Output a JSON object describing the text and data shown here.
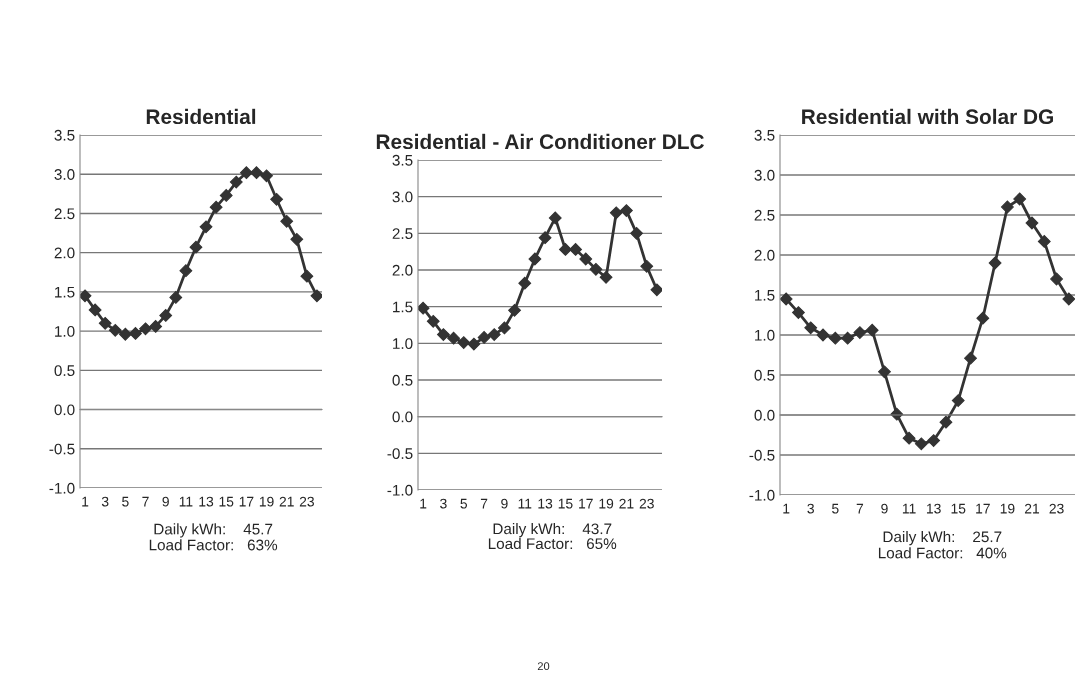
{
  "chart_data": [
    {
      "type": "line",
      "title": "Residential",
      "categories": [
        "1",
        null,
        "3",
        null,
        "5",
        null,
        "7",
        null,
        "9",
        null,
        "11",
        null,
        "13",
        null,
        "15",
        null,
        "17",
        null,
        "19",
        null,
        "21",
        null,
        "23",
        null
      ],
      "series": [
        {
          "color": "#333333",
          "values": [
            1.45,
            1.27,
            1.1,
            1.01,
            0.96,
            0.97,
            1.03,
            1.06,
            1.2,
            1.43,
            1.77,
            2.07,
            2.33,
            2.58,
            2.73,
            2.9,
            3.02,
            3.02,
            2.98,
            2.68,
            2.4,
            2.17,
            1.7,
            1.45
          ]
        }
      ],
      "ylim": [
        -1.0,
        3.5
      ],
      "yticks": [
        {
          "value": -1.0,
          "label": "-1.0"
        },
        {
          "value": -0.5,
          "label": "-0.5"
        },
        {
          "value": 0.0,
          "label": "0.0"
        },
        {
          "value": 0.5,
          "label": "0.5"
        },
        {
          "value": 1.0,
          "label": "1.0"
        },
        {
          "value": 1.5,
          "label": "1.5"
        },
        {
          "value": 2.0,
          "label": "2.0"
        },
        {
          "value": 2.5,
          "label": "2.5"
        },
        {
          "value": 3.0,
          "label": "3.0"
        },
        {
          "value": 3.5,
          "label": "3.5"
        }
      ],
      "grid": "y",
      "marker": "diamond",
      "line_style": "solid",
      "legend": false,
      "annotations": [
        "Daily kWh:    45.7",
        "Load Factor:   63%"
      ]
    },
    {
      "type": "line",
      "title": "Residential - Air Conditioner DLC",
      "categories": [
        "1",
        null,
        "3",
        null,
        "5",
        null,
        "7",
        null,
        "9",
        null,
        "11",
        null,
        "13",
        null,
        "15",
        null,
        "17",
        null,
        "19",
        null,
        "21",
        null,
        "23",
        null
      ],
      "series": [
        {
          "color": "#333333",
          "values": [
            1.48,
            1.3,
            1.12,
            1.07,
            1.01,
            0.99,
            1.08,
            1.12,
            1.21,
            1.45,
            1.82,
            2.15,
            2.44,
            2.71,
            2.28,
            2.28,
            2.15,
            2.01,
            1.9,
            2.78,
            2.81,
            2.5,
            2.05,
            1.73
          ]
        }
      ],
      "ylim": [
        -1.0,
        3.5
      ],
      "yticks": [
        {
          "value": -1.0,
          "label": "-1.0"
        },
        {
          "value": -0.5,
          "label": "-0.5"
        },
        {
          "value": 0.0,
          "label": "0.0"
        },
        {
          "value": 0.5,
          "label": "0.5"
        },
        {
          "value": 1.0,
          "label": "1.0"
        },
        {
          "value": 1.5,
          "label": "1.5"
        },
        {
          "value": 2.0,
          "label": "2.0"
        },
        {
          "value": 2.5,
          "label": "2.5"
        },
        {
          "value": 3.0,
          "label": "3.0"
        },
        {
          "value": 3.5,
          "label": "3.5"
        }
      ],
      "grid": "y",
      "marker": "diamond",
      "line_style": "solid",
      "legend": false,
      "annotations": [
        "Daily kWh:    43.7",
        "Load Factor:   65%",
        "20"
      ]
    },
    {
      "type": "line",
      "title": "Residential with Solar DG",
      "categories": [
        "1",
        null,
        "3",
        null,
        "5",
        null,
        "7",
        null,
        "9",
        null,
        "11",
        null,
        "13",
        null,
        "15",
        null,
        "17",
        null,
        "19",
        null,
        "21",
        null,
        "23",
        null
      ],
      "series": [
        {
          "color": "#333333",
          "values": [
            1.45,
            1.28,
            1.09,
            1.0,
            0.96,
            0.96,
            1.03,
            1.06,
            0.54,
            0.01,
            -0.29,
            -0.36,
            -0.32,
            -0.09,
            0.18,
            0.71,
            1.21,
            1.9,
            2.6,
            2.7,
            2.4,
            2.17,
            1.7,
            1.45
          ]
        }
      ],
      "ylim": [
        -1.0,
        3.5
      ],
      "yticks": [
        {
          "value": -1.0,
          "label": "-1.0"
        },
        {
          "value": -0.5,
          "label": "-0.5"
        },
        {
          "value": 0.0,
          "label": "0.0"
        },
        {
          "value": 0.5,
          "label": "0.5"
        },
        {
          "value": 1.0,
          "label": "1.0"
        },
        {
          "value": 1.5,
          "label": "1.5"
        },
        {
          "value": 2.0,
          "label": "2.0"
        },
        {
          "value": 2.5,
          "label": "2.5"
        },
        {
          "value": 3.0,
          "label": "3.0"
        },
        {
          "value": 3.5,
          "label": "3.5"
        }
      ],
      "grid": "y",
      "marker": "diamond",
      "line_style": "solid",
      "legend": false,
      "annotations": [
        "Daily kWh:    25.7",
        "Load Factor:   40%"
      ]
    }
  ]
}
